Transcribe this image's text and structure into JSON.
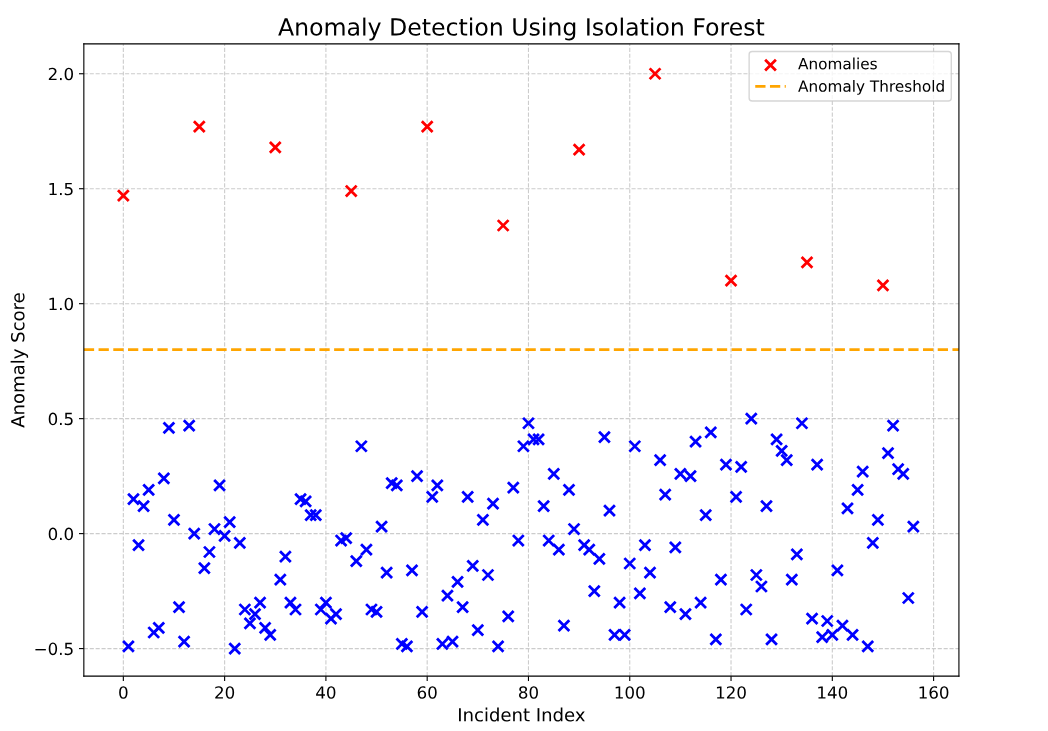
{
  "chart_data": {
    "type": "scatter",
    "title": "Anomaly Detection Using Isolation Forest",
    "xlabel": "Incident Index",
    "ylabel": "Anomaly Score",
    "xlim": [
      -7.8,
      165
    ],
    "ylim": [
      -0.62,
      2.13
    ],
    "xticks": [
      0,
      20,
      40,
      60,
      80,
      100,
      120,
      140,
      160
    ],
    "yticks": [
      {
        "value": -0.5,
        "label": "−0.5"
      },
      {
        "value": 0,
        "label": "0.0"
      },
      {
        "value": 0.5,
        "label": "0.5"
      },
      {
        "value": 1.0,
        "label": "1.0"
      },
      {
        "value": 1.5,
        "label": "1.5"
      },
      {
        "value": 2.0,
        "label": "2.0"
      }
    ],
    "grid": true,
    "legend": "top right",
    "marker": "cross",
    "series": [
      {
        "color": "#0000ff",
        "x": [
          1,
          2,
          3,
          4,
          5,
          6,
          7,
          8,
          9,
          10,
          11,
          12,
          13,
          14,
          16,
          17,
          18,
          19,
          20,
          21,
          22,
          23,
          24,
          25,
          26,
          27,
          28,
          29,
          31,
          32,
          33,
          34,
          35,
          36,
          37,
          38,
          39,
          40,
          41,
          42,
          43,
          44,
          46,
          47,
          48,
          49,
          50,
          51,
          52,
          53,
          54,
          55,
          56,
          57,
          58,
          59,
          61,
          62,
          63,
          64,
          65,
          66,
          67,
          68,
          69,
          70,
          71,
          72,
          73,
          74,
          76,
          77,
          78,
          79,
          80,
          81,
          82,
          83,
          84,
          85,
          86,
          87,
          88,
          89,
          91,
          92,
          93,
          94,
          95,
          96,
          97,
          98,
          99,
          100,
          101,
          102,
          103,
          104,
          106,
          107,
          108,
          109,
          110,
          111,
          112,
          113,
          114,
          115,
          116,
          117,
          118,
          119,
          121,
          122,
          123,
          124,
          125,
          126,
          127,
          128,
          129,
          130,
          131,
          132,
          133,
          134,
          136,
          137,
          138,
          139,
          140,
          141,
          142,
          143,
          144,
          145,
          146,
          147,
          148,
          149,
          151,
          152,
          153,
          154,
          155,
          156
        ],
        "values": [
          -0.49,
          0.15,
          -0.05,
          0.12,
          0.19,
          -0.43,
          -0.41,
          0.24,
          0.46,
          0.06,
          -0.32,
          -0.47,
          0.47,
          0.0,
          -0.15,
          -0.08,
          0.02,
          0.21,
          -0.01,
          0.05,
          -0.5,
          -0.04,
          -0.33,
          -0.39,
          -0.35,
          -0.3,
          -0.41,
          -0.44,
          -0.2,
          -0.1,
          -0.3,
          -0.33,
          0.15,
          0.14,
          0.08,
          0.08,
          -0.33,
          -0.3,
          -0.37,
          -0.35,
          -0.03,
          -0.02,
          -0.12,
          0.38,
          -0.07,
          -0.33,
          -0.34,
          0.03,
          -0.17,
          0.22,
          0.21,
          -0.48,
          -0.49,
          -0.16,
          0.25,
          -0.34,
          0.16,
          0.21,
          -0.48,
          -0.27,
          -0.47,
          -0.21,
          -0.32,
          0.16,
          -0.14,
          -0.42,
          0.06,
          -0.18,
          0.13,
          -0.49,
          -0.36,
          0.2,
          -0.03,
          0.38,
          0.48,
          0.41,
          0.41,
          0.12,
          -0.03,
          0.26,
          -0.07,
          -0.4,
          0.19,
          0.02,
          -0.05,
          -0.07,
          -0.25,
          -0.11,
          0.42,
          0.1,
          -0.44,
          -0.3,
          -0.44,
          -0.13,
          0.38,
          -0.26,
          -0.05,
          -0.17,
          0.32,
          0.17,
          -0.32,
          -0.06,
          0.26,
          -0.35,
          0.25,
          0.4,
          -0.3,
          0.08,
          0.44,
          -0.46,
          -0.2,
          0.3,
          0.16,
          0.29,
          -0.33,
          0.5,
          -0.18,
          -0.23,
          0.12,
          -0.46,
          0.41,
          0.36,
          0.32,
          -0.2,
          -0.09,
          0.48,
          -0.37,
          0.3,
          -0.45,
          -0.38,
          -0.44,
          -0.16,
          -0.4,
          0.11,
          -0.44,
          0.19,
          0.27,
          -0.49,
          -0.04,
          0.06,
          0.35,
          0.47,
          0.28,
          0.26,
          -0.28,
          0.03
        ]
      },
      {
        "name": "Anomalies",
        "color": "#ff0000",
        "x": [
          0,
          15,
          30,
          45,
          60,
          75,
          90,
          105,
          120,
          135,
          150
        ],
        "values": [
          1.47,
          1.77,
          1.68,
          1.49,
          1.77,
          1.34,
          1.67,
          2.0,
          1.1,
          1.18,
          1.08
        ]
      }
    ],
    "ref_lines": [
      {
        "axis": "y",
        "value": 0.8,
        "label": "Anomaly Threshold",
        "color": "#ffa500",
        "line_style": "dashed"
      }
    ]
  }
}
